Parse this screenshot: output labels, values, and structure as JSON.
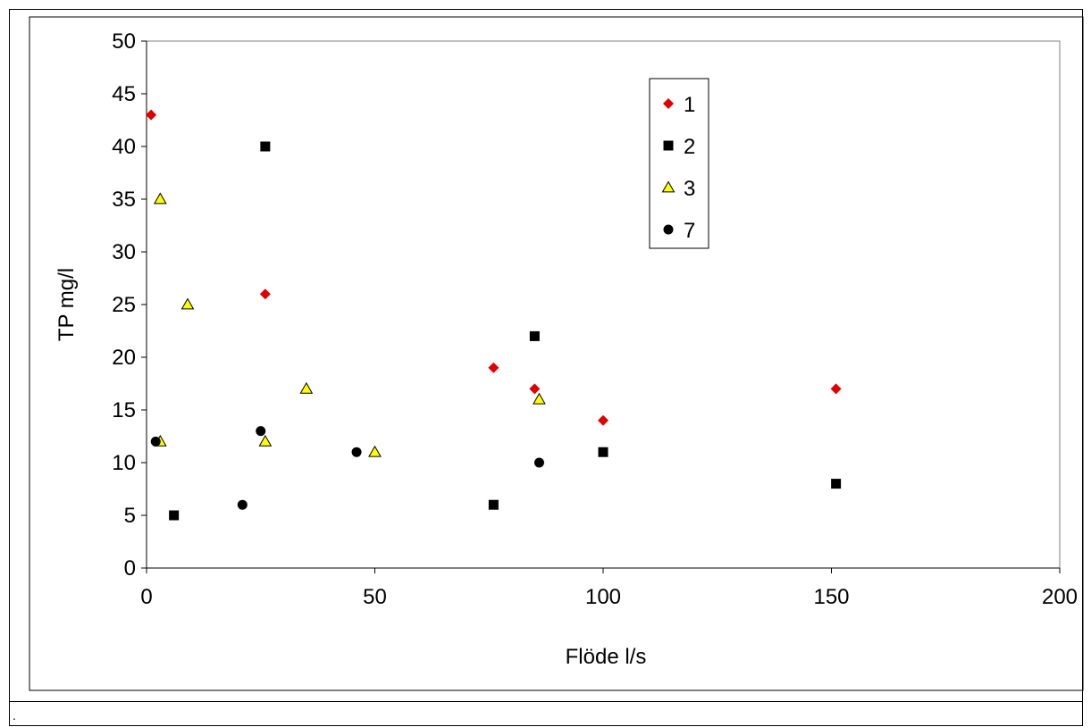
{
  "footer": {
    "text": "."
  },
  "chart_data": {
    "type": "scatter",
    "title": "",
    "xlabel": "Flöde l/s",
    "ylabel": "TP mg/l",
    "xlim": [
      0,
      200
    ],
    "ylim": [
      0,
      50
    ],
    "xticks": [
      0,
      50,
      100,
      150,
      200
    ],
    "yticks": [
      0,
      5,
      10,
      15,
      20,
      25,
      30,
      35,
      40,
      45,
      50
    ],
    "xtick_labels": [
      "0",
      "50",
      "100",
      "150",
      "200"
    ],
    "ytick_labels": [
      "0",
      "5",
      "10",
      "15",
      "20",
      "25",
      "30",
      "35",
      "40",
      "45",
      "50"
    ],
    "grid": false,
    "legend_position": "top-right",
    "series": [
      {
        "name": "1",
        "marker": "diamond",
        "color": "#e00000",
        "x": [
          1,
          26,
          76,
          85,
          100,
          151
        ],
        "y": [
          43,
          26,
          19,
          17,
          14,
          17
        ]
      },
      {
        "name": "2",
        "marker": "square",
        "color": "#000000",
        "x": [
          26,
          6,
          85,
          76,
          100,
          151
        ],
        "y": [
          40,
          5,
          22,
          6,
          11,
          8
        ]
      },
      {
        "name": "3",
        "marker": "triangle",
        "color": "#ffff00",
        "x": [
          3,
          9,
          3,
          26,
          35,
          50,
          86
        ],
        "y": [
          35,
          25,
          12,
          12,
          17,
          11,
          16
        ]
      },
      {
        "name": "7",
        "marker": "circle",
        "color": "#000000",
        "x": [
          2,
          25,
          21,
          46,
          86
        ],
        "y": [
          12,
          13,
          6,
          11,
          10
        ]
      }
    ]
  }
}
